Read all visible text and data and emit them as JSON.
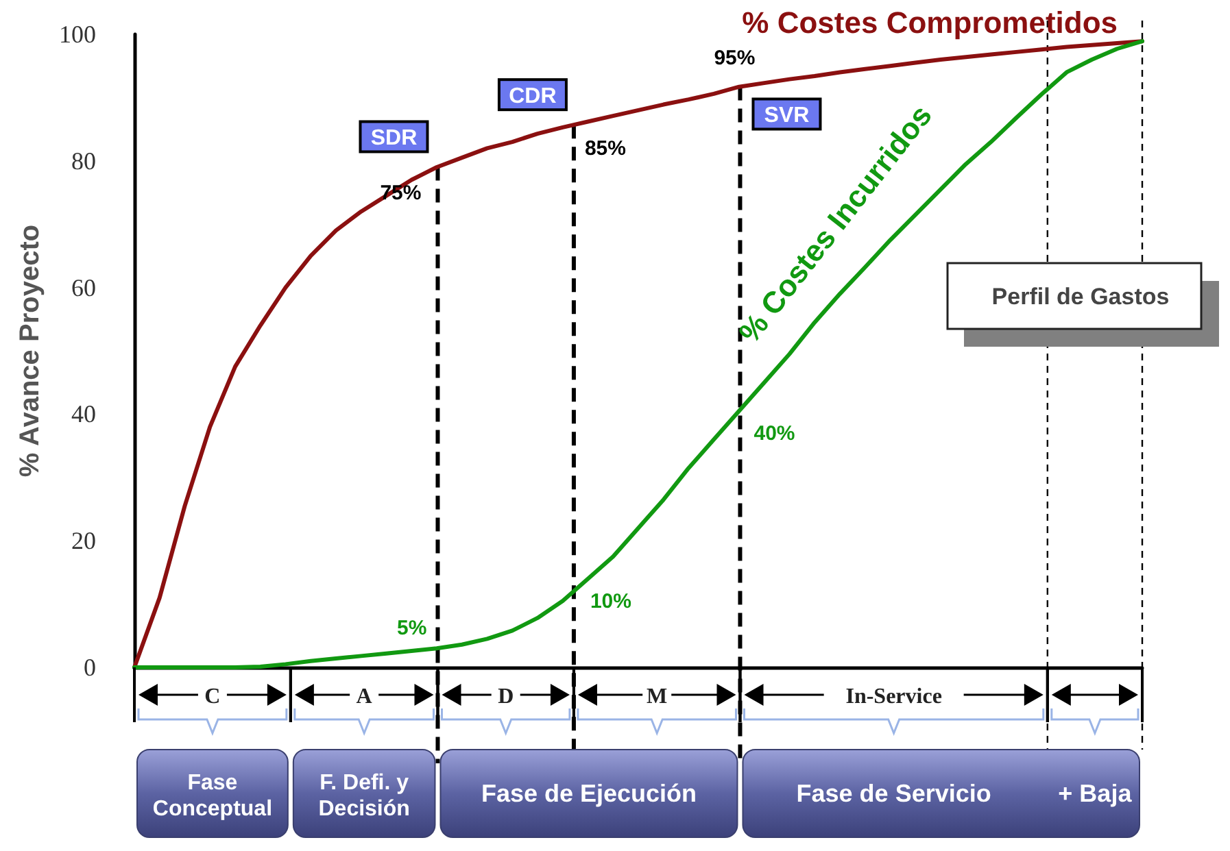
{
  "chart_data": {
    "type": "line",
    "ylabel": "% Avance Proyecto",
    "ylim": [
      0,
      100
    ],
    "yticks": [
      0,
      20,
      40,
      60,
      80,
      100
    ],
    "tick_labels": "y",
    "marker": "none",
    "categories": [
      null,
      null,
      null,
      null,
      null,
      null,
      null,
      null,
      null,
      null,
      null,
      null,
      null,
      null,
      null,
      null,
      null,
      null,
      null,
      null,
      null,
      null,
      null,
      null,
      null,
      null,
      null,
      null,
      null,
      null,
      null,
      null,
      null,
      null,
      null,
      null,
      null,
      null,
      null,
      null,
      null
    ],
    "series": [
      {
        "name": "% Costes Comprometidos",
        "color": "#8b1010",
        "values": [
          0,
          11,
          25.5,
          38,
          47.5,
          54,
          60,
          65,
          69,
          72,
          74.5,
          77,
          79,
          80.5,
          82,
          83,
          84.3,
          85.3,
          86.2,
          87.1,
          88,
          88.9,
          89.7,
          90.6,
          91.7,
          92.3,
          92.9,
          93.4,
          94,
          94.5,
          95,
          95.5,
          96,
          96.4,
          96.8,
          97.2,
          97.6,
          98,
          98.3,
          98.6,
          98.9
        ]
      },
      {
        "name": "% Costes Incurridos",
        "color": "#119911",
        "values": [
          0,
          0,
          0,
          0,
          0,
          0.1,
          0.5,
          1,
          1.4,
          1.8,
          2.2,
          2.6,
          3,
          3.6,
          4.5,
          5.8,
          7.8,
          10.5,
          14,
          17.5,
          22,
          26.5,
          31.5,
          36,
          40.5,
          45,
          49.5,
          54.5,
          59,
          63.2,
          67.5,
          71.5,
          75.5,
          79.5,
          83,
          86.8,
          90.5,
          94,
          96,
          97.7,
          98.9
        ]
      }
    ],
    "annotations": [
      "SDR",
      "CDR",
      "SVR",
      "C",
      "A",
      "D",
      "M",
      "In-Service",
      "Fase Conceptual",
      "F. Defi. y Decisión",
      "Fase de Ejecución",
      "Fase de Servicio",
      "+ Baja",
      "Perfil de Gastos",
      "75%",
      "85%",
      "95%",
      "5%",
      "10%",
      "40%"
    ]
  }
}
